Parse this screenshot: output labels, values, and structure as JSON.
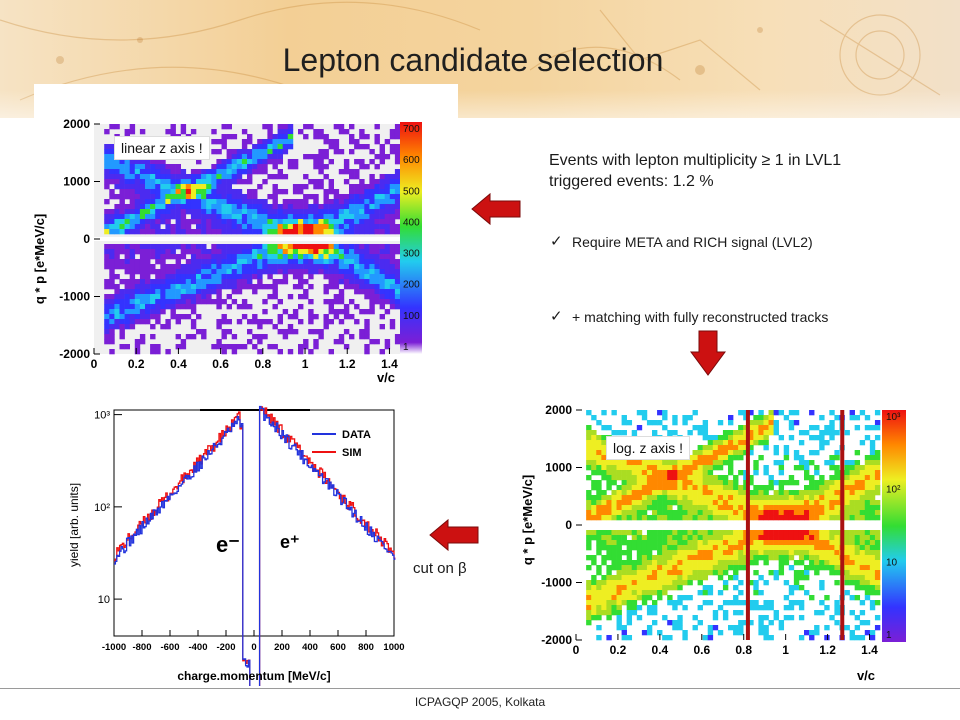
{
  "slide": {
    "title": "Lepton candidate selection",
    "headline": "Events with lepton multiplicity ≥ 1 in LVL1 triggered events: 1.2 %",
    "bullets": [
      "Require META and RICH signal (LVL2)",
      "+ matching with fully reconstructed tracks"
    ],
    "check_icon": "✓",
    "cut_label": "cut on β",
    "footer": "ICPAGQP 2005, Kolkata",
    "arrow_color": "#cc1111"
  },
  "chart_data": [
    {
      "type": "heatmap",
      "annotation": "linear z axis !",
      "xlabel": "v/c",
      "ylabel": "q * p [e*MeV/c]",
      "xlim": [
        0,
        1.45
      ],
      "ylim": [
        -2000,
        2000
      ],
      "xticks": [
        "0",
        "0.2",
        "0.4",
        "0.6",
        "0.8",
        "1",
        "1.2",
        "1.4"
      ],
      "yticks": [
        "2000",
        "1000",
        "0",
        "-1000",
        "-2000"
      ],
      "zticks": [
        "700",
        "600",
        "500",
        "400",
        "300",
        "200",
        "100",
        "1"
      ],
      "zscale": "linear"
    },
    {
      "type": "line",
      "ylabel": "yield [arb. units]",
      "xlabel": "charge.momentum [MeV/c]",
      "xlim": [
        -1000,
        1000
      ],
      "yscale": "log",
      "xticks": [
        "-1000",
        "-800",
        "-600",
        "-400",
        "-200",
        "0",
        "200",
        "400",
        "600",
        "800",
        "1000"
      ],
      "yticks": [
        "10",
        "10²",
        "10³"
      ],
      "series": [
        {
          "name": "DATA",
          "color": "#2233dd"
        },
        {
          "name": "SIM",
          "color": "#ee1111"
        }
      ],
      "annotations": [
        "e⁻",
        "e⁺"
      ]
    },
    {
      "type": "heatmap",
      "annotation": "log. z axis !",
      "xlabel": "v/c",
      "ylabel": "q * p [e*MeV/c]",
      "xlim": [
        0,
        1.45
      ],
      "ylim": [
        -2000,
        2000
      ],
      "xticks": [
        "0",
        "0.2",
        "0.4",
        "0.6",
        "0.8",
        "1",
        "1.2",
        "1.4"
      ],
      "yticks": [
        "2000",
        "1000",
        "0",
        "-1000",
        "-2000"
      ],
      "zticks": [
        "10³",
        "10²",
        "10",
        "1"
      ],
      "zscale": "log",
      "cut_lines_x": [
        0.82,
        1.27
      ]
    }
  ]
}
